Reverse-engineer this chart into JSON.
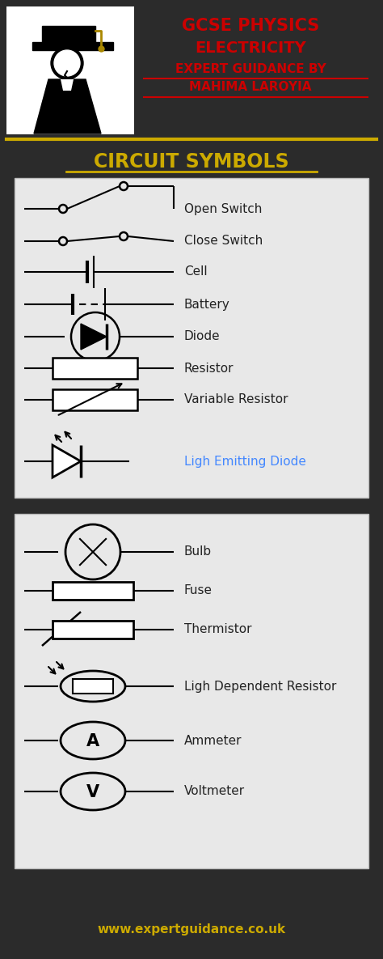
{
  "bg_color": "#2b2b2b",
  "panel1_bg": "#e8e8e8",
  "panel2_bg": "#e8e8e8",
  "title_line1": "GCSE PHYSICS",
  "title_line2": "ELECTRICITY",
  "title_line3": "EXPERT GUIDANCE BY",
  "title_line4": "MAHIMA LAROYIA",
  "title_color": "#cc0000",
  "section_title": "CIRCUIT SYMBOLS",
  "section_title_color": "#ccaa00",
  "gold_line_color": "#ccaa00",
  "website": "www.expertguidance.co.uk",
  "website_color": "#ccaa00",
  "panel1_symbols": [
    "Open Switch",
    "Close Switch",
    "Cell",
    "Battery",
    "Diode",
    "Resistor",
    "Variable Resistor",
    "Ligh Emitting Diode"
  ],
  "panel2_symbols": [
    "Bulb",
    "Fuse",
    "Thermistor",
    "Ligh Dependent Resistor",
    "Ammeter",
    "Voltmeter"
  ],
  "led_color": "#4488ff",
  "symbol_text_color": "#222222",
  "logo_bg": "#ffffff",
  "underline_color": "#cc0000",
  "section_underline_color": "#ccaa00"
}
